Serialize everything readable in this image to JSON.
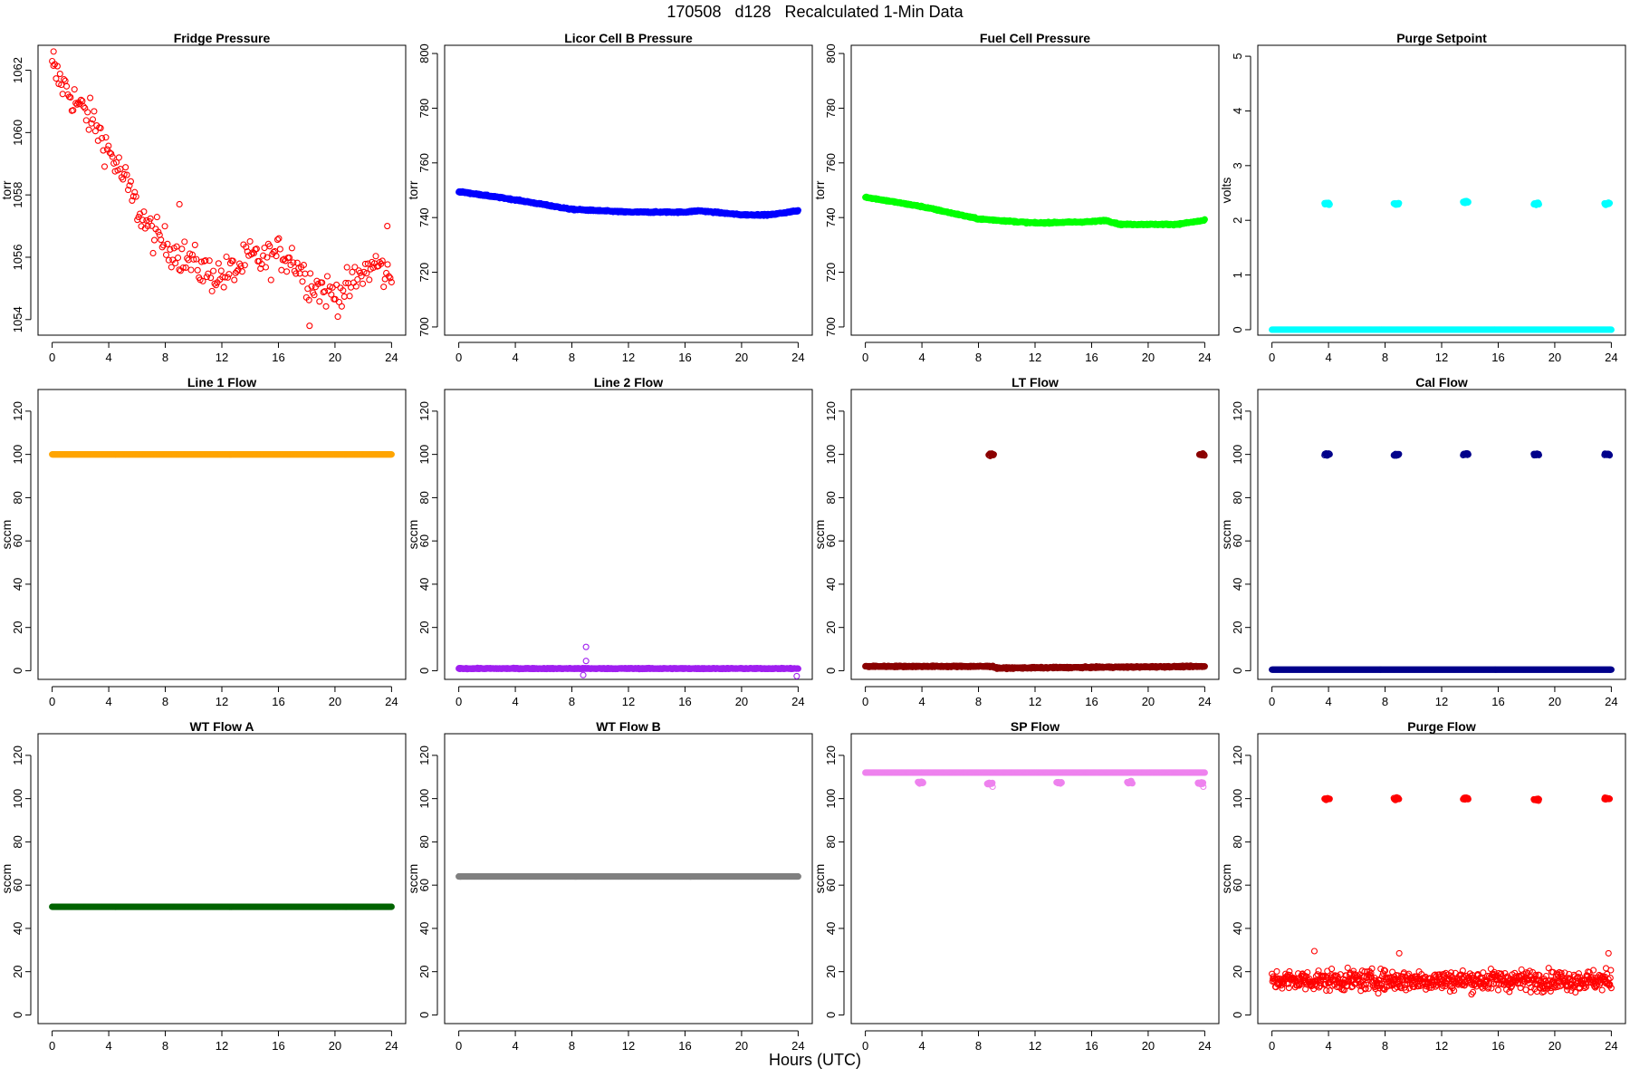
{
  "page": {
    "title": "170508   d128   Recalculated 1-Min Data",
    "x_caption": "Hours (UTC)"
  },
  "chart_data": [
    {
      "id": "fridge",
      "type": "scatter",
      "title": "Fridge Pressure",
      "ylabel": "torr",
      "color": "#ff0000",
      "xlim": [
        -1,
        25
      ],
      "ylim": [
        1053.5,
        1062.8
      ],
      "yticks": [
        1054,
        1056,
        1058,
        1060,
        1062
      ],
      "xticks": [
        0,
        4,
        8,
        12,
        16,
        20,
        24
      ],
      "series": [
        {
          "x": [
            0,
            1,
            2,
            3,
            4,
            5,
            6,
            7,
            8,
            9,
            10,
            11,
            12,
            13,
            14,
            15,
            16,
            17,
            18,
            19,
            20,
            21,
            22,
            23,
            24
          ],
          "y": [
            1062,
            1061.4,
            1060.8,
            1060.3,
            1059.4,
            1058.6,
            1057.6,
            1056.8,
            1056.4,
            1056.1,
            1055.8,
            1055.5,
            1055.4,
            1055.6,
            1056.0,
            1055.9,
            1056.1,
            1056.0,
            1055.3,
            1055.0,
            1054.8,
            1055.0,
            1055.5,
            1055.8,
            1055.2
          ],
          "noise": 0.55,
          "points": 260
        }
      ],
      "outliers": [
        {
          "x": 0.1,
          "y": 1062.6
        },
        {
          "x": 9.0,
          "y": 1057.7
        },
        {
          "x": 18.2,
          "y": 1053.8
        },
        {
          "x": 23.7,
          "y": 1057.0
        }
      ]
    },
    {
      "id": "licor",
      "type": "scatter",
      "title": "Licor Cell B Pressure",
      "ylabel": "torr",
      "color": "#0000ff",
      "xlim": [
        -1,
        25
      ],
      "ylim": [
        697,
        803
      ],
      "yticks": [
        700,
        720,
        740,
        760,
        780,
        800
      ],
      "xticks": [
        0,
        4,
        8,
        12,
        16,
        20,
        24
      ],
      "series": [
        {
          "x": [
            0,
            4,
            8,
            12,
            16,
            17,
            20,
            22,
            24
          ],
          "y": [
            749.5,
            746.5,
            743,
            742,
            742,
            742.5,
            741,
            741,
            742.5
          ],
          "noise": 0.25,
          "points": 800
        }
      ]
    },
    {
      "id": "fuel",
      "type": "scatter",
      "title": "Fuel Cell Pressure",
      "ylabel": "torr",
      "color": "#00ff00",
      "xlim": [
        -1,
        25
      ],
      "ylim": [
        697,
        803
      ],
      "yticks": [
        700,
        720,
        740,
        760,
        780,
        800
      ],
      "xticks": [
        0,
        4,
        8,
        12,
        16,
        20,
        24
      ],
      "series": [
        {
          "x": [
            0,
            4,
            8,
            12,
            16,
            17,
            18,
            20,
            22,
            24
          ],
          "y": [
            747.5,
            744,
            739.5,
            738,
            738.5,
            739,
            737.5,
            737.5,
            737.5,
            739
          ],
          "noise": 0.25,
          "points": 800
        }
      ]
    },
    {
      "id": "purge_sp",
      "type": "scatter",
      "title": "Purge Setpoint",
      "ylabel": "volts",
      "color": "#00ffff",
      "xlim": [
        -1,
        25
      ],
      "ylim": [
        -0.1,
        5.2
      ],
      "yticks": [
        0,
        1,
        2,
        3,
        4,
        5
      ],
      "xticks": [
        0,
        4,
        8,
        12,
        16,
        20,
        24
      ],
      "series": [
        {
          "x": [
            0,
            24
          ],
          "y": [
            0,
            0
          ],
          "noise": 0,
          "points": 800
        }
      ],
      "clusters": [
        {
          "x": 3.9,
          "y": 2.3
        },
        {
          "x": 8.8,
          "y": 2.3
        },
        {
          "x": 13.7,
          "y": 2.33
        },
        {
          "x": 18.7,
          "y": 2.3
        },
        {
          "x": 23.7,
          "y": 2.3
        }
      ]
    },
    {
      "id": "line1",
      "type": "scatter",
      "title": "Line 1 Flow",
      "ylabel": "sccm",
      "color": "#ffa500",
      "xlim": [
        -1,
        25
      ],
      "ylim": [
        -4,
        130
      ],
      "yticks": [
        0,
        20,
        40,
        60,
        80,
        100,
        120
      ],
      "xticks": [
        0,
        4,
        8,
        12,
        16,
        20,
        24
      ],
      "series": [
        {
          "x": [
            0,
            24
          ],
          "y": [
            100,
            100
          ],
          "noise": 0,
          "points": 800
        }
      ]
    },
    {
      "id": "line2",
      "type": "scatter",
      "title": "Line 2 Flow",
      "ylabel": "sccm",
      "color": "#a020f0",
      "xlim": [
        -1,
        25
      ],
      "ylim": [
        -4,
        130
      ],
      "yticks": [
        0,
        20,
        40,
        60,
        80,
        100,
        120
      ],
      "xticks": [
        0,
        4,
        8,
        12,
        16,
        20,
        24
      ],
      "series": [
        {
          "x": [
            0,
            24
          ],
          "y": [
            1,
            1
          ],
          "noise": 0.2,
          "points": 800
        }
      ],
      "outliers": [
        {
          "x": 9.0,
          "y": 11
        },
        {
          "x": 9.0,
          "y": 4.5
        },
        {
          "x": 8.8,
          "y": -2
        },
        {
          "x": 23.9,
          "y": -2.5
        }
      ]
    },
    {
      "id": "lt",
      "type": "scatter",
      "title": "LT Flow",
      "ylabel": "sccm",
      "color": "#8b0000",
      "xlim": [
        -1,
        25
      ],
      "ylim": [
        -4,
        130
      ],
      "yticks": [
        0,
        20,
        40,
        60,
        80,
        100,
        120
      ],
      "xticks": [
        0,
        4,
        8,
        12,
        16,
        20,
        24
      ],
      "series": [
        {
          "x": [
            0,
            9,
            9.3,
            24
          ],
          "y": [
            2,
            2,
            1.2,
            2
          ],
          "noise": 0.3,
          "points": 800
        }
      ],
      "clusters": [
        {
          "x": 8.9,
          "y": 100
        },
        {
          "x": 23.8,
          "y": 100
        }
      ]
    },
    {
      "id": "cal",
      "type": "scatter",
      "title": "Cal Flow",
      "ylabel": "sccm",
      "color": "#00008b",
      "xlim": [
        -1,
        25
      ],
      "ylim": [
        -4,
        130
      ],
      "yticks": [
        0,
        20,
        40,
        60,
        80,
        100,
        120
      ],
      "xticks": [
        0,
        4,
        8,
        12,
        16,
        20,
        24
      ],
      "series": [
        {
          "x": [
            0,
            24
          ],
          "y": [
            0.5,
            0.5
          ],
          "noise": 0,
          "points": 800
        }
      ],
      "clusters": [
        {
          "x": 3.9,
          "y": 100
        },
        {
          "x": 8.8,
          "y": 100
        },
        {
          "x": 13.7,
          "y": 100
        },
        {
          "x": 18.7,
          "y": 100
        },
        {
          "x": 23.7,
          "y": 100
        }
      ]
    },
    {
      "id": "wta",
      "type": "scatter",
      "title": "WT Flow A",
      "ylabel": "sccm",
      "color": "#006400",
      "xlim": [
        -1,
        25
      ],
      "ylim": [
        -4,
        130
      ],
      "yticks": [
        0,
        20,
        40,
        60,
        80,
        100,
        120
      ],
      "xticks": [
        0,
        4,
        8,
        12,
        16,
        20,
        24
      ],
      "series": [
        {
          "x": [
            0,
            24
          ],
          "y": [
            50,
            50
          ],
          "noise": 0,
          "points": 800
        }
      ]
    },
    {
      "id": "wtb",
      "type": "scatter",
      "title": "WT Flow B",
      "ylabel": "sccm",
      "color": "#808080",
      "xlim": [
        -1,
        25
      ],
      "ylim": [
        -4,
        130
      ],
      "yticks": [
        0,
        20,
        40,
        60,
        80,
        100,
        120
      ],
      "xticks": [
        0,
        4,
        8,
        12,
        16,
        20,
        24
      ],
      "series": [
        {
          "x": [
            0,
            24
          ],
          "y": [
            64,
            64
          ],
          "noise": 0,
          "points": 800
        }
      ]
    },
    {
      "id": "sp",
      "type": "scatter",
      "title": "SP Flow",
      "ylabel": "sccm",
      "color": "#ee82ee",
      "xlim": [
        -1,
        25
      ],
      "ylim": [
        -4,
        130
      ],
      "yticks": [
        0,
        20,
        40,
        60,
        80,
        100,
        120
      ],
      "xticks": [
        0,
        4,
        8,
        12,
        16,
        20,
        24
      ],
      "series": [
        {
          "x": [
            0,
            24
          ],
          "y": [
            112,
            112
          ],
          "noise": 0,
          "points": 800
        }
      ],
      "clusters": [
        {
          "x": 3.9,
          "y": 107.5
        },
        {
          "x": 8.8,
          "y": 107
        },
        {
          "x": 13.7,
          "y": 107.5
        },
        {
          "x": 18.7,
          "y": 107.5
        },
        {
          "x": 23.7,
          "y": 107
        }
      ],
      "outliers": [
        {
          "x": 9.0,
          "y": 105.5
        },
        {
          "x": 23.9,
          "y": 105.5
        }
      ]
    },
    {
      "id": "purge_flow",
      "type": "scatter",
      "title": "Purge Flow",
      "ylabel": "sccm",
      "color": "#ff0000",
      "xlim": [
        -1,
        25
      ],
      "ylim": [
        -4,
        130
      ],
      "yticks": [
        0,
        20,
        40,
        60,
        80,
        100,
        120
      ],
      "xticks": [
        0,
        4,
        8,
        12,
        16,
        20,
        24
      ],
      "series": [
        {
          "x": [
            0,
            24
          ],
          "y": [
            16,
            16
          ],
          "noise": 4.5,
          "points": 700
        }
      ],
      "clusters": [
        {
          "x": 3.9,
          "y": 100
        },
        {
          "x": 8.8,
          "y": 100
        },
        {
          "x": 13.7,
          "y": 100
        },
        {
          "x": 18.7,
          "y": 99.5
        },
        {
          "x": 23.7,
          "y": 100
        }
      ],
      "outliers": [
        {
          "x": 3.0,
          "y": 29.5
        },
        {
          "x": 9.0,
          "y": 28.5
        },
        {
          "x": 23.8,
          "y": 28.5
        }
      ]
    }
  ]
}
